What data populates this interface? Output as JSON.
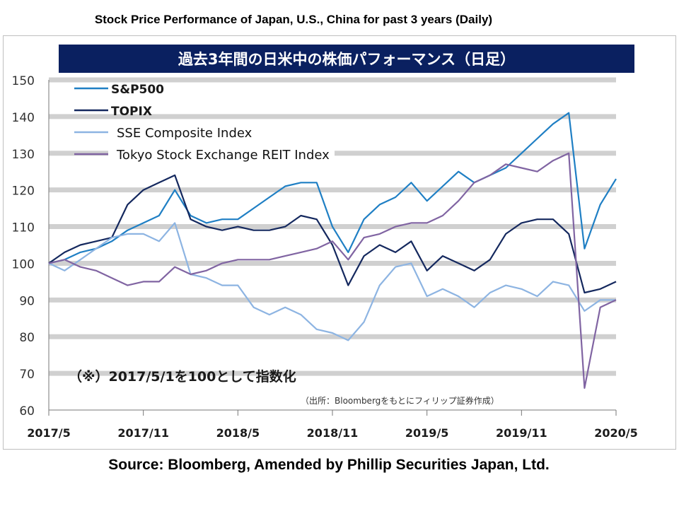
{
  "page_title": "Stock Price Performance of Japan, U.S., China for past 3 years (Daily)",
  "source": "Source: Bloomberg, Amended by Phillip Securities Japan, Ltd.",
  "chart_data": {
    "type": "line",
    "title": "過去3年間の日米中の株価パフォーマンス（日足）",
    "annotation": "（※）2017/5/1を100として指数化",
    "credit": "（出所：Bloombergをもとにフィリップ証券作成）",
    "ylim": [
      60,
      150
    ],
    "yticks": [
      "150",
      "140",
      "130",
      "120",
      "110",
      "100",
      "90",
      "80",
      "70",
      "60"
    ],
    "xlim": [
      "2017-05",
      "2020-05"
    ],
    "xticks": [
      "2017/5",
      "2017/11",
      "2018/5",
      "2018/11",
      "2019/5",
      "2019/11",
      "2020/5"
    ],
    "grid": "horizontal",
    "legend_position": "top-left",
    "x": [
      "2017-05",
      "2017-06",
      "2017-07",
      "2017-08",
      "2017-09",
      "2017-10",
      "2017-11",
      "2017-12",
      "2018-01",
      "2018-02",
      "2018-03",
      "2018-04",
      "2018-05",
      "2018-06",
      "2018-07",
      "2018-08",
      "2018-09",
      "2018-10",
      "2018-11",
      "2018-12",
      "2019-01",
      "2019-02",
      "2019-03",
      "2019-04",
      "2019-05",
      "2019-06",
      "2019-07",
      "2019-08",
      "2019-09",
      "2019-10",
      "2019-11",
      "2019-12",
      "2020-01",
      "2020-02",
      "2020-03",
      "2020-04",
      "2020-05"
    ],
    "series": [
      {
        "name": "S&P500",
        "color": "#1f7fc4",
        "values": [
          100,
          101,
          103,
          104,
          106,
          109,
          111,
          113,
          120,
          113,
          111,
          112,
          112,
          115,
          118,
          121,
          122,
          122,
          110,
          103,
          112,
          116,
          118,
          122,
          117,
          121,
          125,
          122,
          124,
          126,
          130,
          134,
          138,
          141,
          104,
          116,
          123
        ]
      },
      {
        "name": "TOPIX",
        "color": "#14285e",
        "values": [
          100,
          103,
          105,
          106,
          107,
          116,
          120,
          122,
          124,
          112,
          110,
          109,
          110,
          109,
          109,
          110,
          113,
          112,
          105,
          94,
          102,
          105,
          103,
          106,
          98,
          102,
          100,
          98,
          101,
          108,
          111,
          112,
          112,
          108,
          92,
          93,
          95
        ]
      },
      {
        "name": "SSE Composite Index",
        "color": "#8db4e2",
        "values": [
          100,
          98,
          101,
          104,
          107,
          108,
          108,
          106,
          111,
          97,
          96,
          94,
          94,
          88,
          86,
          88,
          86,
          82,
          81,
          79,
          84,
          94,
          99,
          100,
          91,
          93,
          91,
          88,
          92,
          94,
          93,
          91,
          95,
          94,
          87,
          90,
          90
        ]
      },
      {
        "name": "Tokyo Stock Exchange REIT Index",
        "color": "#8064a2",
        "values": [
          100,
          101,
          99,
          98,
          96,
          94,
          95,
          95,
          99,
          97,
          98,
          100,
          101,
          101,
          101,
          102,
          103,
          104,
          106,
          101,
          107,
          108,
          110,
          111,
          111,
          113,
          117,
          122,
          124,
          127,
          126,
          125,
          128,
          130,
          66,
          88,
          90
        ]
      }
    ]
  }
}
